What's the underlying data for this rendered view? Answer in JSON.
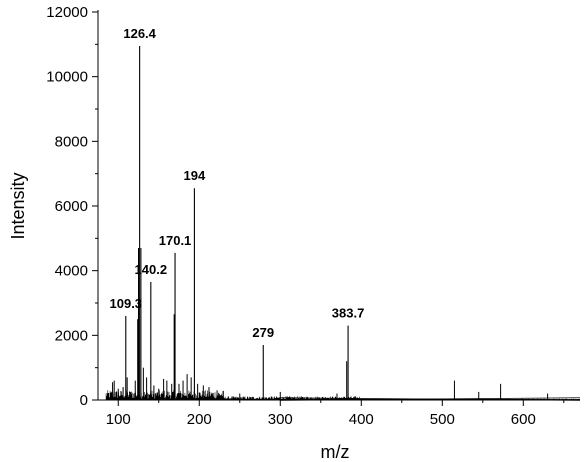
{
  "chart_data": {
    "type": "line",
    "title": "",
    "xlabel": "m/z",
    "ylabel": "Intensity",
    "xlim": [
      75,
      670
    ],
    "ylim": [
      0,
      12000
    ],
    "x_ticks": [
      "100",
      "200",
      "300",
      "400",
      "500",
      "600"
    ],
    "y_ticks": [
      "0",
      "2000",
      "4000",
      "6000",
      "8000",
      "10000",
      "12000"
    ],
    "grid": false,
    "legend": "none",
    "peaks": [
      {
        "x": 109.3,
        "y": 2600,
        "label": "109.3"
      },
      {
        "x": 126.4,
        "y": 10950,
        "label": "126.4"
      },
      {
        "x": 140.2,
        "y": 3650,
        "label": "140.2"
      },
      {
        "x": 170.1,
        "y": 4550,
        "label": "170.1"
      },
      {
        "x": 194,
        "y": 6550,
        "label": "194"
      },
      {
        "x": 279,
        "y": 1700,
        "label": "279"
      },
      {
        "x": 383.7,
        "y": 2300,
        "label": "383.7"
      }
    ],
    "minor_peaks": [
      {
        "x": 93,
        "y": 550
      },
      {
        "x": 95,
        "y": 600
      },
      {
        "x": 100,
        "y": 350
      },
      {
        "x": 106,
        "y": 400
      },
      {
        "x": 111,
        "y": 700
      },
      {
        "x": 115,
        "y": 250
      },
      {
        "x": 121,
        "y": 600
      },
      {
        "x": 124,
        "y": 2500
      },
      {
        "x": 125,
        "y": 4700
      },
      {
        "x": 128,
        "y": 4700
      },
      {
        "x": 131,
        "y": 1000
      },
      {
        "x": 135,
        "y": 700
      },
      {
        "x": 144,
        "y": 450
      },
      {
        "x": 150,
        "y": 350
      },
      {
        "x": 156,
        "y": 650
      },
      {
        "x": 160,
        "y": 600
      },
      {
        "x": 166,
        "y": 500
      },
      {
        "x": 169,
        "y": 2650
      },
      {
        "x": 175,
        "y": 500
      },
      {
        "x": 180,
        "y": 600
      },
      {
        "x": 185,
        "y": 800
      },
      {
        "x": 190,
        "y": 700
      },
      {
        "x": 198,
        "y": 500
      },
      {
        "x": 205,
        "y": 450
      },
      {
        "x": 212,
        "y": 400
      },
      {
        "x": 222,
        "y": 300
      },
      {
        "x": 250,
        "y": 200
      },
      {
        "x": 300,
        "y": 250
      },
      {
        "x": 370,
        "y": 200
      },
      {
        "x": 382,
        "y": 1200
      },
      {
        "x": 515,
        "y": 600
      },
      {
        "x": 545,
        "y": 250
      },
      {
        "x": 572,
        "y": 500
      },
      {
        "x": 630,
        "y": 200
      }
    ]
  }
}
